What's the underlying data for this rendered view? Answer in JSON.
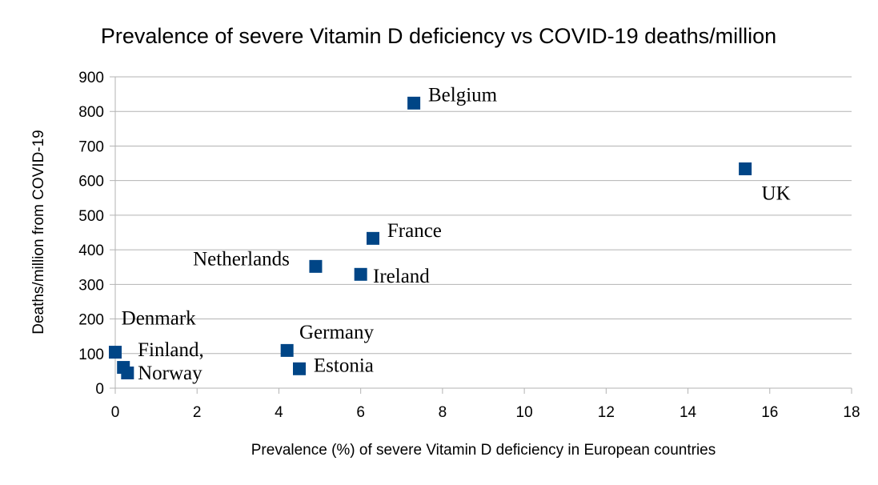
{
  "chart_data": {
    "type": "scatter",
    "title": "Prevalence of severe Vitamin D deficiency vs COVID-19 deaths/million",
    "xlabel": "Prevalence (%) of severe Vitamin D deficiency in European countries",
    "ylabel": "Deaths/million from COVID-19",
    "xlim": [
      0,
      18
    ],
    "ylim": [
      0,
      900
    ],
    "xticks": [
      0,
      2,
      4,
      6,
      8,
      10,
      12,
      14,
      16,
      18
    ],
    "yticks": [
      0,
      100,
      200,
      300,
      400,
      500,
      600,
      700,
      800,
      900
    ],
    "grid": "horizontal",
    "marker_color": "#004586",
    "points": [
      {
        "x": 7.3,
        "y": 824
      },
      {
        "x": 15.4,
        "y": 634
      },
      {
        "x": 6.3,
        "y": 433
      },
      {
        "x": 4.9,
        "y": 352
      },
      {
        "x": 6.0,
        "y": 329
      },
      {
        "x": 4.2,
        "y": 109
      },
      {
        "x": 4.5,
        "y": 56
      },
      {
        "x": 0.0,
        "y": 104
      },
      {
        "x": 0.2,
        "y": 60
      },
      {
        "x": 0.3,
        "y": 44
      }
    ],
    "annotations": [
      {
        "text": "Belgium",
        "x": 7.65,
        "y": 830
      },
      {
        "text": "UK",
        "x": 15.8,
        "y": 545
      },
      {
        "text": "France",
        "x": 6.65,
        "y": 437
      },
      {
        "text": "Netherlands",
        "x": 1.9,
        "y": 355
      },
      {
        "text": "Ireland",
        "x": 6.3,
        "y": 305
      },
      {
        "text": "Germany",
        "x": 4.5,
        "y": 144
      },
      {
        "text": "Estonia",
        "x": 4.85,
        "y": 47
      },
      {
        "text": "Denmark",
        "x": 0.15,
        "y": 184
      },
      {
        "text": "Finland,",
        "x": 0.55,
        "y": 92
      },
      {
        "text": "Norway",
        "x": 0.55,
        "y": 26
      }
    ]
  }
}
